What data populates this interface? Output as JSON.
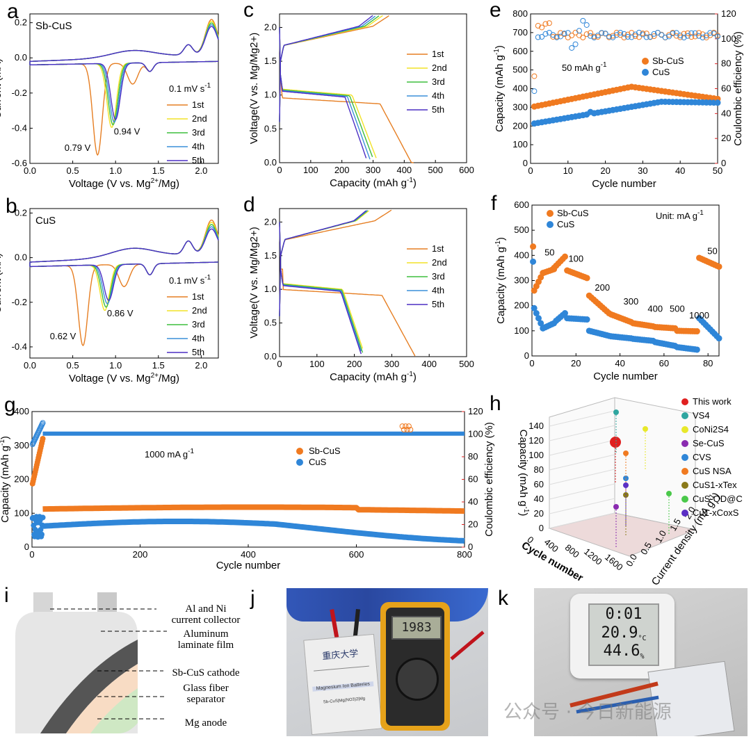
{
  "panels": {
    "a": {
      "label": "a",
      "title": "Sb-CuS",
      "scan_rate": "0.1 mV s",
      "scan_rate_sup": "-1",
      "peak1": "0.79 V",
      "peak2": "0.94 V"
    },
    "b": {
      "label": "b",
      "title": "CuS",
      "scan_rate": "0.1 mV s",
      "scan_rate_sup": "-1",
      "peak1": "0.62 V",
      "peak2": "0.86 V"
    },
    "c": {
      "label": "c"
    },
    "d": {
      "label": "d"
    },
    "e": {
      "label": "e",
      "note": "50 mAh g",
      "note_sup": "-1"
    },
    "f": {
      "label": "f",
      "unit": "Unit: mA g",
      "unit_sup": "-1"
    },
    "g": {
      "label": "g",
      "note": "1000 mA g",
      "note_sup": "-1"
    },
    "h": {
      "label": "h"
    },
    "i": {
      "label": "i",
      "callouts": [
        "Al and Ni",
        "current collector",
        "Aluminum",
        "laminate film",
        "Sb-CuS cathode",
        "Glass fiber",
        "separator",
        "Mg anode"
      ]
    },
    "j": {
      "label": "j",
      "meter_reading": "1983",
      "pouch_label": "Magnesium Ion Batteries",
      "pouch_formula": "Sb-CuS|Mg(NO3)2|Mg"
    },
    "k": {
      "label": "k",
      "clock_time": "0:01",
      "temperature": "20.9",
      "humidity": "44.6",
      "temp_unit": "°C",
      "humidity_unit": "%"
    }
  },
  "cycle_labels": [
    "1st",
    "2nd",
    "3rd",
    "4th",
    "5th"
  ],
  "cycle_colors": [
    "#e67e22",
    "#f2e227",
    "#3dbd3d",
    "#3a8fd8",
    "#4b2fc4"
  ],
  "colors": {
    "orange": "#f07a20",
    "blue": "#2f86d8",
    "red": "#e02020"
  },
  "watermark": "公众号 · 今日新能源",
  "chart_data": [
    {
      "id": "a",
      "type": "line",
      "xlabel": "Voltage (V vs. Mg",
      "xlabel_sup": "2+",
      "xlabel_end": "/Mg)",
      "ylabel": "Current (mA)",
      "xlim": [
        0.0,
        2.2
      ],
      "ylim": [
        -0.6,
        0.25
      ],
      "xticks": [
        "0.0",
        "0.5",
        "1.0",
        "1.5",
        "2.0"
      ],
      "yticks": [
        "-0.6",
        "-0.4",
        "-0.2",
        "0.0",
        "0.2"
      ]
    },
    {
      "id": "b",
      "type": "line",
      "xlabel": "Voltage (V vs. Mg",
      "xlabel_sup": "2+",
      "xlabel_end": "/Mg)",
      "ylabel": "Current (mA)",
      "xlim": [
        0.0,
        2.2
      ],
      "ylim": [
        -0.45,
        0.22
      ],
      "xticks": [
        "0.0",
        "0.5",
        "1.0",
        "1.5",
        "2.0"
      ],
      "yticks": [
        "-0.4",
        "-0.2",
        "0.0",
        "0.2"
      ]
    },
    {
      "id": "c",
      "type": "line",
      "xlabel": "Capacity (mAh g",
      "xlabel_sup": "-1",
      "xlabel_end": ")",
      "ylabel": "Voltage(V vs. Mg/Mg2+)",
      "xlim": [
        0,
        600
      ],
      "ylim": [
        0.0,
        2.2
      ],
      "xticks": [
        "0",
        "100",
        "200",
        "300",
        "400",
        "500",
        "600"
      ],
      "yticks": [
        "0.0",
        "0.5",
        "1.0",
        "1.5",
        "2.0"
      ],
      "discharge_capacity": [
        430,
        310,
        300,
        290,
        280
      ]
    },
    {
      "id": "d",
      "type": "line",
      "xlabel": "Capacity (mAh g",
      "xlabel_sup": "-1",
      "xlabel_end": ")",
      "ylabel": "Voltage(V vs. Mg/Mg2+)",
      "xlim": [
        0,
        500
      ],
      "ylim": [
        0.0,
        2.2
      ],
      "xticks": [
        "0",
        "100",
        "200",
        "300",
        "400",
        "500"
      ],
      "yticks": [
        "0.0",
        "0.5",
        "1.0",
        "1.5",
        "2.0"
      ],
      "discharge_capacity": [
        365,
        225,
        222,
        220,
        218
      ]
    },
    {
      "id": "e",
      "type": "scatter",
      "xlabel": "Cycle number",
      "ylabel": "Capacity (mAh g",
      "ylabel_sup": "-1",
      "ylabel_end": ")",
      "ylabel2": "Coulombic efficiency (%)",
      "xlim": [
        0,
        50
      ],
      "ylim": [
        0,
        800
      ],
      "y2lim": [
        0,
        120
      ],
      "xticks": [
        "0",
        "10",
        "20",
        "30",
        "40",
        "50"
      ],
      "yticks": [
        "0",
        "100",
        "200",
        "300",
        "400",
        "500",
        "600",
        "700",
        "800"
      ],
      "y2ticks": [
        "0",
        "20",
        "40",
        "60",
        "80",
        "100",
        "120"
      ],
      "series": [
        {
          "name": "Sb-CuS",
          "start": 300,
          "end": 345,
          "peak": 410,
          "peak_cycle": 27
        },
        {
          "name": "CuS",
          "start": 210,
          "end": 325,
          "peak": 330,
          "peak_cycle": 35
        }
      ]
    },
    {
      "id": "f",
      "type": "scatter",
      "xlabel": "Cycle number",
      "ylabel": "Capacity (mAh g",
      "ylabel_sup": "-1",
      "ylabel_end": ")",
      "xlim": [
        0,
        85
      ],
      "ylim": [
        0,
        600
      ],
      "xticks": [
        "0",
        "20",
        "40",
        "60",
        "80"
      ],
      "yticks": [
        "0",
        "100",
        "200",
        "300",
        "400",
        "500",
        "600"
      ],
      "rate_labels": [
        "50",
        "100",
        "200",
        "300",
        "400",
        "500",
        "1000",
        "50"
      ],
      "series": [
        {
          "name": "Sb-CuS"
        },
        {
          "name": "CuS"
        }
      ]
    },
    {
      "id": "g",
      "type": "scatter",
      "xlabel": "Cycle number",
      "ylabel": "Capacity (mAh g",
      "ylabel_sup": "-1",
      "ylabel_end": ")",
      "ylabel2": "Coulombic efficiency (%)",
      "xlim": [
        0,
        800
      ],
      "ylim": [
        0,
        400
      ],
      "y2lim": [
        0,
        120
      ],
      "xticks": [
        "0",
        "200",
        "400",
        "600",
        "800"
      ],
      "yticks": [
        "0",
        "100",
        "200",
        "300",
        "400"
      ],
      "y2ticks": [
        "0",
        "20",
        "40",
        "60",
        "80",
        "100",
        "120"
      ],
      "series": [
        {
          "name": "Sb-CuS",
          "start": 115,
          "end": 105
        },
        {
          "name": "CuS",
          "start": 62,
          "end": 28
        }
      ]
    },
    {
      "id": "h",
      "type": "scatter3d",
      "xlabel": "Cycle number",
      "ylabel": "Current density (mA g",
      "ylabel_sup": "-1",
      "ylabel_end": ")",
      "zlabel": "Capacity (mAh g",
      "zlabel_sup": "-1",
      "zlabel_end": ")",
      "zticks": [
        "0",
        "20",
        "40",
        "60",
        "80",
        "100",
        "120",
        "140"
      ],
      "xticks": [
        "0",
        "400",
        "800",
        "1200",
        "1600"
      ],
      "yticks": [
        "0.0",
        "0.5",
        "1.0",
        "1.5",
        "2.0"
      ],
      "legend": [
        "This work",
        "VS4",
        "CoNi2S4",
        "Se-CuS",
        "CVS",
        "CuS NSA",
        "CuS1-xTex",
        "CuS-QD@C",
        "Cu1-xCoxS"
      ],
      "legend_colors": [
        "#e02020",
        "#2fa6a0",
        "#e8e82a",
        "#8a2bb0",
        "#2f86d8",
        "#f07a20",
        "#8a7a1a",
        "#4ac84a",
        "#5a2fc4"
      ]
    }
  ]
}
